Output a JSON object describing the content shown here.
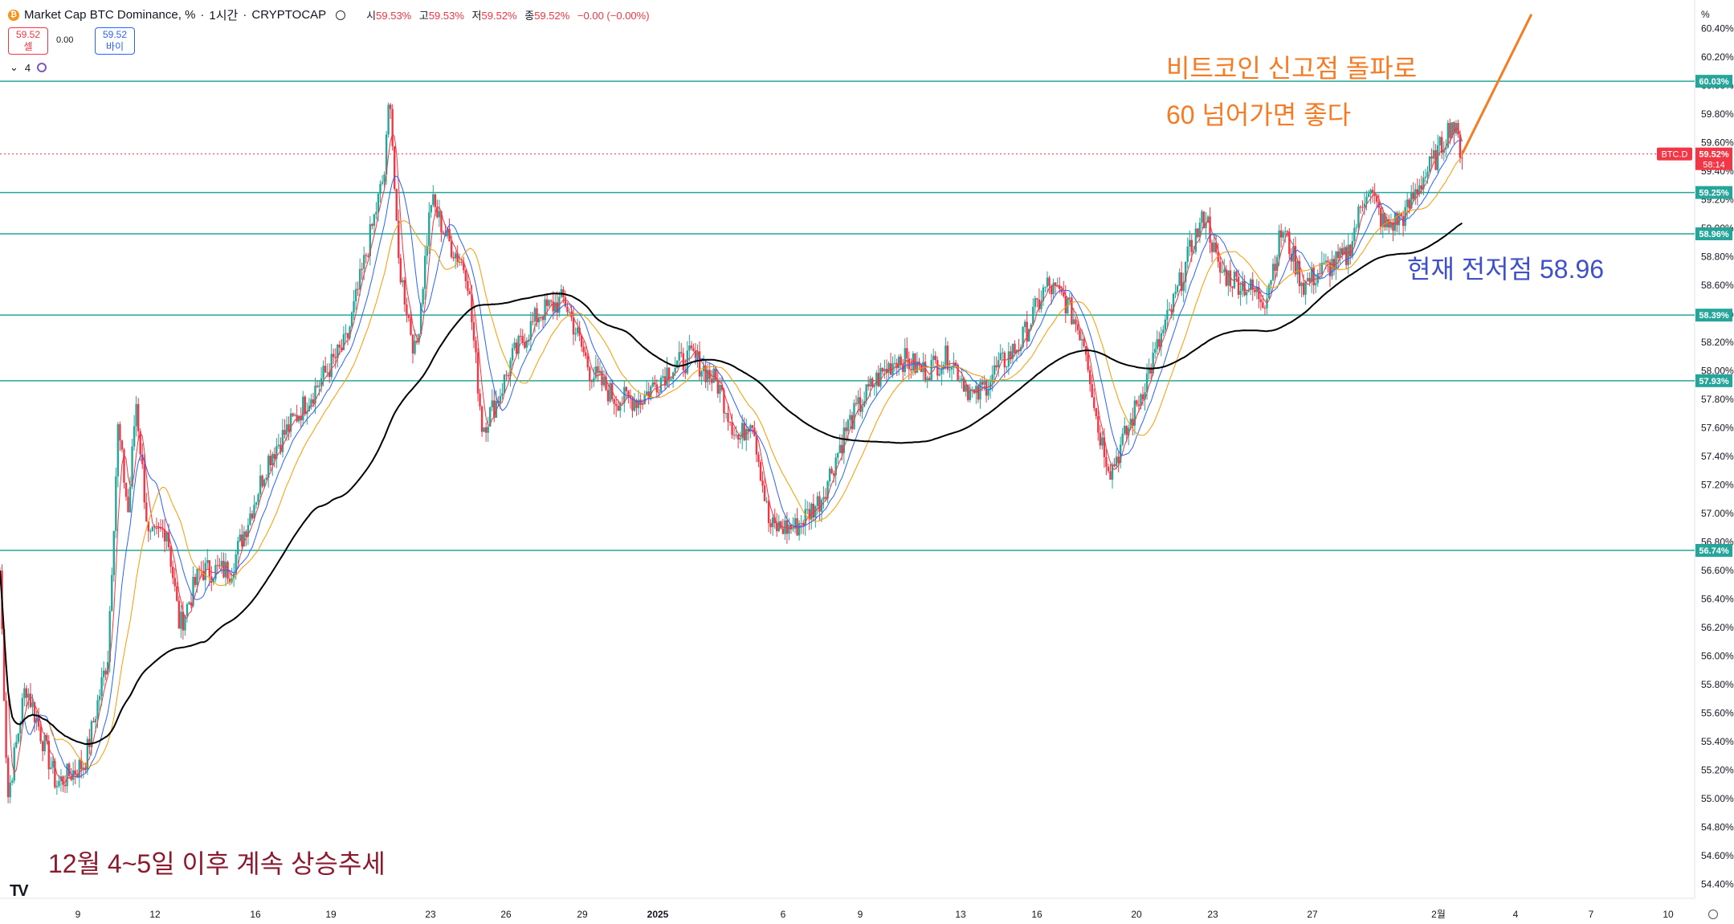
{
  "header": {
    "title": "Market Cap BTC Dominance, %",
    "interval": "1시간",
    "exchange": "CRYPTOCAP",
    "open_label": "시",
    "open": "59.53%",
    "high_label": "고",
    "high": "59.53%",
    "low_label": "저",
    "low": "59.52%",
    "close_label": "종",
    "close": "59.52%",
    "change": "−0.00 (−0.00%)"
  },
  "trade": {
    "sell_price": "59.52",
    "sell_label": "셀",
    "spread": "0.00",
    "buy_price": "59.52",
    "buy_label": "바이"
  },
  "indicators": {
    "count": "4"
  },
  "colors": {
    "up": "#26a69a",
    "down": "#f23645",
    "ma_fast": "#f23645",
    "ma_mid": "#2962ff",
    "ma_slow": "#ff9800",
    "ma_long": "#000000",
    "hline": "#26a69a",
    "annotation_orange": "#f57c24",
    "annotation_blue": "#3f51c6",
    "annotation_red": "#8b1a2e"
  },
  "annotations": {
    "target_line1": "비트코인 신고점 돌파로",
    "target_line2": "60 넘어가면 좋다",
    "support": "현재 전저점 58.96",
    "trend": "12월 4~5일 이후 계속 상승추세"
  },
  "chart_data": {
    "type": "candlestick",
    "unit_label": "%",
    "ylim": [
      54.3,
      60.6
    ],
    "y_ticks": [
      54.4,
      54.6,
      54.8,
      55.0,
      55.2,
      55.4,
      55.6,
      55.8,
      56.0,
      56.2,
      56.4,
      56.6,
      56.8,
      57.0,
      57.2,
      57.4,
      57.6,
      57.8,
      58.0,
      58.2,
      58.4,
      58.6,
      58.8,
      59.0,
      59.2,
      59.4,
      59.6,
      59.8,
      60.0,
      60.2,
      60.4
    ],
    "x_ticks": [
      "9",
      "12",
      "16",
      "19",
      "23",
      "26",
      "29",
      "2025",
      "6",
      "9",
      "13",
      "16",
      "20",
      "23",
      "27",
      "2월",
      "4",
      "7",
      "10"
    ],
    "horizontal_levels": [
      60.03,
      59.25,
      58.96,
      58.39,
      57.93,
      56.74
    ],
    "last_price": {
      "symbol": "BTC.D",
      "value": 59.52,
      "countdown": "58:14"
    },
    "price_path": [
      {
        "x": 0.0,
        "y": 56.6
      },
      {
        "x": 0.3,
        "y": 55.0
      },
      {
        "x": 1.0,
        "y": 55.8
      },
      {
        "x": 2.2,
        "y": 55.1
      },
      {
        "x": 3.3,
        "y": 55.25
      },
      {
        "x": 4.2,
        "y": 56.0
      },
      {
        "x": 4.6,
        "y": 57.6
      },
      {
        "x": 5.0,
        "y": 57.0
      },
      {
        "x": 5.3,
        "y": 57.8
      },
      {
        "x": 5.8,
        "y": 56.8
      },
      {
        "x": 6.5,
        "y": 56.9
      },
      {
        "x": 7.0,
        "y": 56.2
      },
      {
        "x": 7.8,
        "y": 56.6
      },
      {
        "x": 9.0,
        "y": 56.6
      },
      {
        "x": 10.5,
        "y": 57.4
      },
      {
        "x": 12.0,
        "y": 57.8
      },
      {
        "x": 13.5,
        "y": 58.2
      },
      {
        "x": 14.5,
        "y": 59.0
      },
      {
        "x": 15.0,
        "y": 59.4
      },
      {
        "x": 15.2,
        "y": 60.0
      },
      {
        "x": 15.5,
        "y": 58.8
      },
      {
        "x": 16.2,
        "y": 58.1
      },
      {
        "x": 16.8,
        "y": 59.2
      },
      {
        "x": 17.5,
        "y": 58.9
      },
      {
        "x": 18.2,
        "y": 58.7
      },
      {
        "x": 18.8,
        "y": 57.6
      },
      {
        "x": 19.4,
        "y": 57.8
      },
      {
        "x": 20.0,
        "y": 58.1
      },
      {
        "x": 21.0,
        "y": 58.4
      },
      {
        "x": 22.0,
        "y": 58.5
      },
      {
        "x": 23.0,
        "y": 58.0
      },
      {
        "x": 24.0,
        "y": 57.8
      },
      {
        "x": 25.0,
        "y": 57.8
      },
      {
        "x": 26.0,
        "y": 58.0
      },
      {
        "x": 27.0,
        "y": 58.1
      },
      {
        "x": 28.0,
        "y": 57.9
      },
      {
        "x": 28.8,
        "y": 57.5
      },
      {
        "x": 29.3,
        "y": 57.7
      },
      {
        "x": 30.0,
        "y": 56.9
      },
      {
        "x": 31.0,
        "y": 56.9
      },
      {
        "x": 32.0,
        "y": 57.1
      },
      {
        "x": 33.0,
        "y": 57.6
      },
      {
        "x": 34.0,
        "y": 57.9
      },
      {
        "x": 35.0,
        "y": 58.1
      },
      {
        "x": 36.0,
        "y": 58.0
      },
      {
        "x": 37.0,
        "y": 58.1
      },
      {
        "x": 38.0,
        "y": 57.8
      },
      {
        "x": 38.8,
        "y": 58.0
      },
      {
        "x": 39.8,
        "y": 58.2
      },
      {
        "x": 40.8,
        "y": 58.6
      },
      {
        "x": 41.5,
        "y": 58.5
      },
      {
        "x": 42.3,
        "y": 58.2
      },
      {
        "x": 42.8,
        "y": 57.6
      },
      {
        "x": 43.3,
        "y": 57.3
      },
      {
        "x": 44.0,
        "y": 57.6
      },
      {
        "x": 45.0,
        "y": 58.1
      },
      {
        "x": 45.8,
        "y": 58.5
      },
      {
        "x": 46.5,
        "y": 58.9
      },
      {
        "x": 47.0,
        "y": 59.1
      },
      {
        "x": 47.5,
        "y": 58.7
      },
      {
        "x": 48.5,
        "y": 58.6
      },
      {
        "x": 49.3,
        "y": 58.5
      },
      {
        "x": 50.0,
        "y": 59.0
      },
      {
        "x": 50.8,
        "y": 58.6
      },
      {
        "x": 51.5,
        "y": 58.7
      },
      {
        "x": 52.5,
        "y": 58.8
      },
      {
        "x": 53.3,
        "y": 59.3
      },
      {
        "x": 54.0,
        "y": 59.0
      },
      {
        "x": 54.8,
        "y": 59.1
      },
      {
        "x": 55.3,
        "y": 59.3
      },
      {
        "x": 56.0,
        "y": 59.5
      },
      {
        "x": 56.6,
        "y": 59.75
      },
      {
        "x": 57.0,
        "y": 59.52
      }
    ],
    "series": [
      {
        "ma_period": 20
      },
      {
        "ma_period": 50
      },
      {
        "ma_period": 100
      },
      {
        "ma_period": 400
      }
    ],
    "forecast_arrow": [
      {
        "x": 57.0,
        "y": 59.52
      },
      {
        "x": 59.7,
        "y": 60.5
      }
    ]
  }
}
